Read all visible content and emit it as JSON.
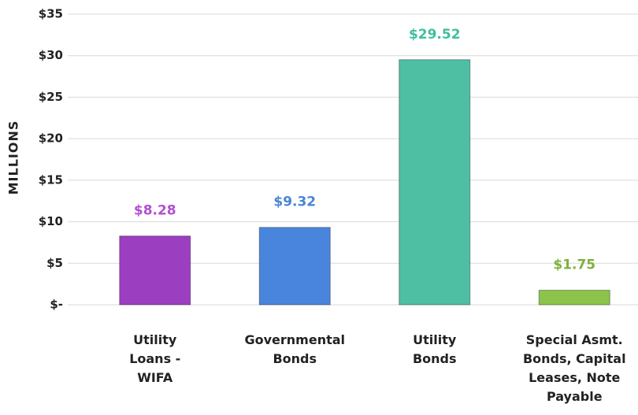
{
  "chart_data": {
    "type": "bar",
    "y_label": "MILLIONS",
    "categories": [
      "Utility Loans - WIFA",
      "Governmental Bonds",
      "Utility Bonds",
      "Special Asmt. Bonds, Capital Leases, Note Payable"
    ],
    "values": [
      8.28,
      9.32,
      29.52,
      1.75
    ],
    "value_labels": [
      "$8.28",
      "$9.32",
      "$29.52",
      "$1.75"
    ],
    "colors": [
      "#9b3fc0",
      "#4a85dd",
      "#4ebfa3",
      "#8cc34a"
    ],
    "label_colors": [
      "#b14fd3",
      "#4a85d6",
      "#3fbf9d",
      "#7cb23a"
    ],
    "ylim": [
      0,
      35
    ],
    "yticks": [
      {
        "value": 0,
        "label": "$-"
      },
      {
        "value": 5,
        "label": "$5"
      },
      {
        "value": 10,
        "label": "$10"
      },
      {
        "value": 15,
        "label": "$15"
      },
      {
        "value": 20,
        "label": "$20"
      },
      {
        "value": 25,
        "label": "$25"
      },
      {
        "value": 30,
        "label": "$30"
      },
      {
        "value": 35,
        "label": "$35"
      }
    ],
    "grid": true
  }
}
